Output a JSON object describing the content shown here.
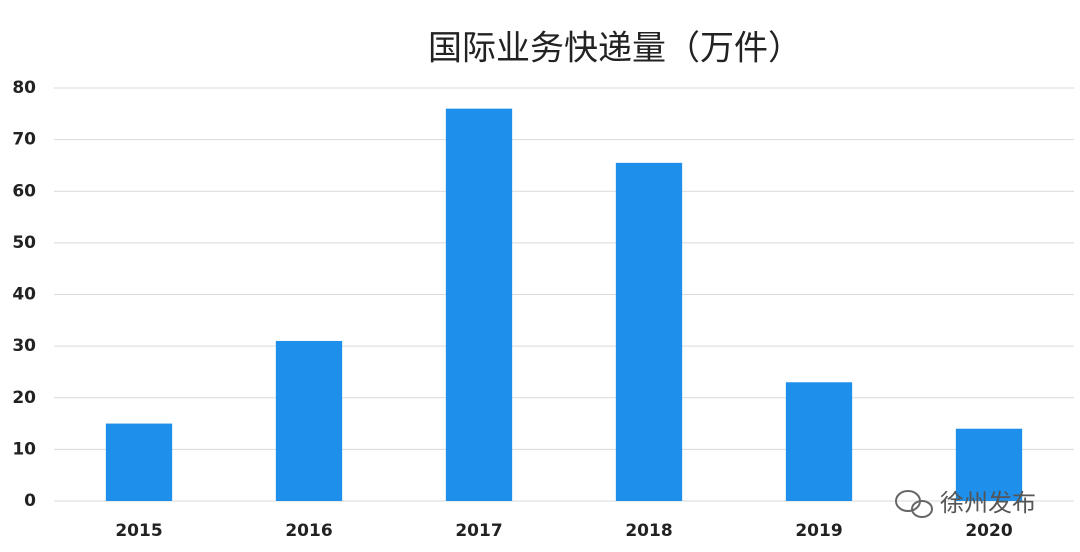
{
  "chart_data": {
    "type": "bar",
    "title": "国际业务快递量（万件）",
    "categories": [
      "2015",
      "2016",
      "2017",
      "2018",
      "2019",
      "2020"
    ],
    "values": [
      15,
      31,
      76,
      65.5,
      23,
      14
    ],
    "color": "#1e8fea",
    "ylim": [
      0,
      80
    ],
    "yticks": [
      0,
      10,
      20,
      30,
      40,
      50,
      60,
      70,
      80
    ],
    "grid": true
  },
  "watermark": "徐州发布"
}
